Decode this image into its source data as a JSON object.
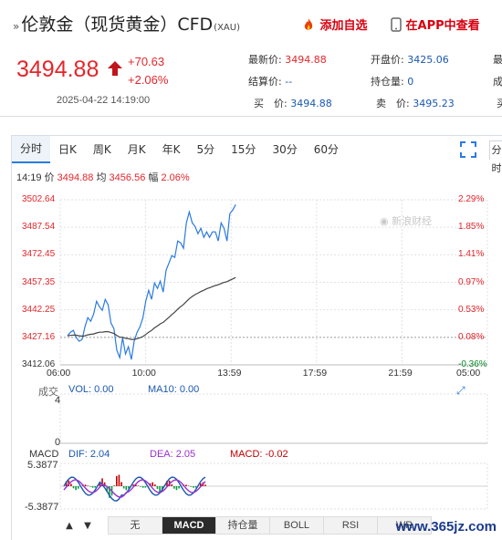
{
  "header": {
    "prefix": "»",
    "title": "伦敦金（现货黄金）CFD",
    "symbol": "(XAU)",
    "add_watch": "添加自选",
    "app_view": "在APP中查看"
  },
  "quote": {
    "price": "3494.88",
    "change": "+70.63",
    "change_pct": "+2.06%",
    "datetime": "2025-04-22 14:19:00",
    "accent": "#e4262b"
  },
  "info": {
    "latest_label": "最新价:",
    "latest": "3494.88",
    "open_label": "开盘价:",
    "open": "3425.06",
    "settle_label": "结算价:",
    "settle": "--",
    "hold_label": "持仓量:",
    "hold": "0",
    "bid_label": "买　价:",
    "bid": "3494.88",
    "ask_label": "卖　价:",
    "ask": "3495.23",
    "edge1": "最",
    "edge2": "成",
    "edge3": "买"
  },
  "tabs": [
    "分时",
    "日K",
    "周K",
    "月K",
    "年K",
    "5分",
    "15分",
    "30分",
    "60分"
  ],
  "tabs_extra": "分时",
  "summary": {
    "time": "14:19",
    "price_label": "价",
    "price": "3494.88",
    "avg_label": "均",
    "avg": "3456.56",
    "amp_label": "幅",
    "amp": "2.06%"
  },
  "chart_data": {
    "type": "line",
    "x_ticks": [
      "06:00",
      "10:00",
      "13:59",
      "17:59",
      "21:59",
      "05:00"
    ],
    "price_ticks": [
      "3502.64",
      "3487.54",
      "3472.45",
      "3457.35",
      "3442.25",
      "3427.16",
      "3412.06"
    ],
    "pct_ticks": [
      "2.29%",
      "1.85%",
      "1.41%",
      "0.97%",
      "0.53%",
      "0.08%",
      "-0.36%"
    ],
    "ylim": [
      3412.06,
      3502.64
    ],
    "series": [
      {
        "values": [
          3428,
          3430,
          3431,
          3427,
          3425,
          3426,
          3433,
          3438,
          3436,
          3440,
          3447,
          3444,
          3442,
          3448,
          3445,
          3435,
          3432,
          3420,
          3416,
          3427,
          3418,
          3422,
          3415,
          3425,
          3430,
          3433,
          3438,
          3447,
          3453,
          3448,
          3457,
          3454,
          3458,
          3452,
          3464,
          3468,
          3472,
          3471,
          3480,
          3479,
          3476,
          3490,
          3496,
          3490,
          3488,
          3484,
          3487,
          3482,
          3485,
          3482,
          3485,
          3485,
          3480,
          3490,
          3487,
          3480,
          3495,
          3497,
          3500
        ]
      },
      {
        "values": [
          3428,
          3428.2,
          3428.4,
          3428.3,
          3428,
          3427.8,
          3428,
          3428.5,
          3428.8,
          3429,
          3429.6,
          3430,
          3430,
          3430.3,
          3430.3,
          3429.8,
          3429.3,
          3428.2,
          3427.2,
          3427.2,
          3426.6,
          3426.4,
          3426,
          3426,
          3426.4,
          3426.9,
          3427.6,
          3428.7,
          3430,
          3431,
          3432.4,
          3433.4,
          3434.6,
          3435.4,
          3436.8,
          3438.2,
          3439.7,
          3441,
          3442.6,
          3444,
          3445.2,
          3446.8,
          3448.4,
          3449.6,
          3450.6,
          3451.4,
          3452.3,
          3453,
          3453.8,
          3454.4,
          3455,
          3455.6,
          3456,
          3456.7,
          3457.3,
          3457.7,
          3458.5,
          3459.2,
          3460
        ]
      }
    ]
  },
  "volume": {
    "label": "成交",
    "vol_label": "VOL: 0.00",
    "ma_label": "MA10: 0.00",
    "y_top": "4",
    "y_bottom": "0"
  },
  "macd": {
    "label": "MACD",
    "dif": "DIF: 2.04",
    "dea": "DEA: 2.05",
    "macd": "MACD: -0.02",
    "y_top": "5.3877",
    "y_bottom": "-5.3877",
    "dif_color": "#1a58b0",
    "dea_color": "#9b30d0",
    "macd_color": "#c00000"
  },
  "bottom": {
    "buttons": [
      "无",
      "MACD",
      "持仓量",
      "BOLL",
      "RSI",
      "WR"
    ],
    "up_arrow": "▲",
    "down_arrow": "▼"
  },
  "watermark": "www.365jz.com",
  "sina_mark": "新浪财经"
}
